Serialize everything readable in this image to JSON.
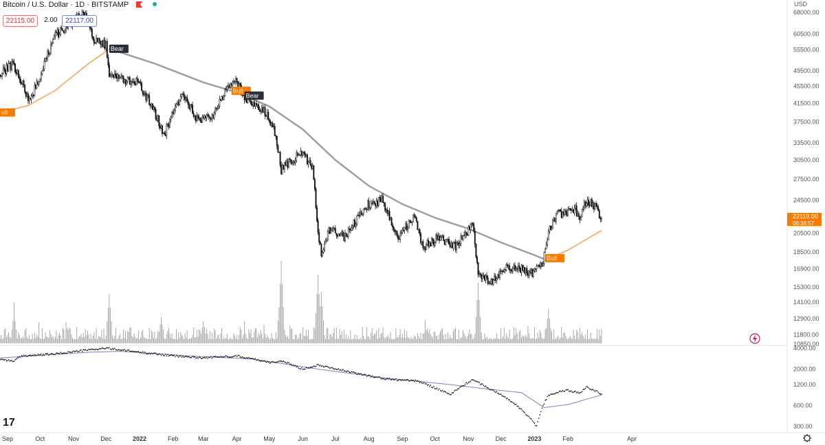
{
  "header": {
    "symbol": "Bitcoin / U.S. Dollar · 1D · BITSTAMP",
    "bid": "22115.00",
    "spread": "2.00",
    "ask": "22117.00"
  },
  "currency": "USD",
  "last_price": "22119.00",
  "countdown": "06:38:57",
  "logo_text": "17",
  "colors": {
    "price": "#111111",
    "ma_slow": "#9e9e9e",
    "ma_fast": "#f2b57a",
    "volume": "#a8a8a8",
    "osc": "#111111",
    "osc_ma": "#7b7fc4",
    "signal": "#f57c00",
    "bear_label": "#2a2e39",
    "bid_border": "#e57373",
    "ask_border": "#7986cb"
  },
  "chart_data": [
    {
      "type": "candlestick",
      "title": "Bitcoin / U.S. Dollar · 1D · BITSTAMP",
      "x_labels": [
        "Sep",
        "Oct",
        "Nov",
        "Dec",
        "2022",
        "Feb",
        "Mar",
        "Apr",
        "May",
        "Jun",
        "Jul",
        "Aug",
        "Sep",
        "Oct",
        "Nov",
        "Dec",
        "2023",
        "Feb",
        "Apr"
      ],
      "y_scale": "log",
      "y_ticks": [
        68000,
        60500,
        55500,
        49500,
        45500,
        41500,
        37500,
        33500,
        30500,
        27500,
        24500,
        20500,
        18500,
        16900,
        15300,
        14100,
        12900,
        11800,
        10850
      ],
      "price_series": {
        "name": "BTCUSD",
        "points": [
          [
            "2021-08-25",
            48500
          ],
          [
            "2021-09-06",
            51500
          ],
          [
            "2021-09-21",
            42000
          ],
          [
            "2021-10-01",
            47500
          ],
          [
            "2021-10-15",
            60000
          ],
          [
            "2021-10-25",
            62500
          ],
          [
            "2021-11-10",
            68000
          ],
          [
            "2021-11-20",
            58500
          ],
          [
            "2021-12-01",
            57000
          ],
          [
            "2021-12-04",
            49000
          ],
          [
            "2021-12-20",
            47000
          ],
          [
            "2021-12-31",
            46300
          ],
          [
            "2022-01-10",
            41800
          ],
          [
            "2022-01-24",
            35000
          ],
          [
            "2022-02-10",
            44000
          ],
          [
            "2022-02-24",
            37500
          ],
          [
            "2022-03-10",
            39000
          ],
          [
            "2022-03-29",
            47400
          ],
          [
            "2022-04-10",
            42300
          ],
          [
            "2022-04-25",
            40000
          ],
          [
            "2022-05-05",
            36500
          ],
          [
            "2022-05-12",
            29000
          ],
          [
            "2022-05-31",
            31800
          ],
          [
            "2022-06-10",
            29000
          ],
          [
            "2022-06-14",
            22000
          ],
          [
            "2022-06-18",
            18000
          ],
          [
            "2022-06-25",
            21000
          ],
          [
            "2022-07-10",
            20000
          ],
          [
            "2022-07-30",
            23800
          ],
          [
            "2022-08-13",
            24500
          ],
          [
            "2022-08-27",
            20000
          ],
          [
            "2022-09-12",
            22300
          ],
          [
            "2022-09-20",
            19000
          ],
          [
            "2022-10-05",
            20000
          ],
          [
            "2022-10-20",
            19100
          ],
          [
            "2022-11-05",
            21300
          ],
          [
            "2022-11-10",
            16500
          ],
          [
            "2022-11-21",
            15700
          ],
          [
            "2022-12-05",
            17100
          ],
          [
            "2022-12-20",
            16800
          ],
          [
            "2022-12-31",
            16550
          ],
          [
            "2023-01-08",
            17100
          ],
          [
            "2023-01-14",
            20800
          ],
          [
            "2023-01-22",
            22800
          ],
          [
            "2023-02-08",
            23200
          ],
          [
            "2023-02-12",
            21800
          ],
          [
            "2023-02-18",
            24700
          ],
          [
            "2023-02-27",
            23400
          ],
          [
            "2023-03-04",
            22119
          ]
        ]
      },
      "ma_slow": {
        "points": [
          [
            "2021-12-04",
            55800
          ],
          [
            "2022-01-15",
            51500
          ],
          [
            "2022-03-01",
            46500
          ],
          [
            "2022-04-01",
            44000
          ],
          [
            "2022-05-01",
            40800
          ],
          [
            "2022-06-01",
            36000
          ],
          [
            "2022-07-01",
            30500
          ],
          [
            "2022-08-01",
            26500
          ],
          [
            "2022-09-01",
            24000
          ],
          [
            "2022-10-01",
            22300
          ],
          [
            "2022-11-01",
            21000
          ],
          [
            "2022-12-01",
            19500
          ],
          [
            "2023-01-01",
            18200
          ],
          [
            "2023-01-10",
            17800
          ]
        ]
      },
      "ma_fast": {
        "points": [
          [
            "2021-08-25",
            39500
          ],
          [
            "2021-09-20",
            41000
          ],
          [
            "2021-10-15",
            44500
          ],
          [
            "2021-11-15",
            51500
          ],
          [
            "2021-12-03",
            55500
          ],
          [
            "2023-01-10",
            17700
          ],
          [
            "2023-02-01",
            18700
          ],
          [
            "2023-03-04",
            20800
          ]
        ]
      },
      "signals": [
        {
          "type": "bull",
          "date": "2021-08-25",
          "text": "ull"
        },
        {
          "type": "bear",
          "date": "2021-12-04",
          "text": "Bear"
        },
        {
          "type": "bull",
          "date": "2022-03-27",
          "text": "Bull"
        },
        {
          "type": "bear",
          "date": "2022-04-08",
          "text": "Bear"
        },
        {
          "type": "bull",
          "date": "2023-01-11",
          "text": "Bull"
        }
      ]
    },
    {
      "type": "line",
      "title": "",
      "y_scale": "log",
      "y_ticks": [
        4000,
        2000,
        1200,
        600,
        300
      ],
      "series": [
        {
          "points": [
            [
              "2021-08-25",
              2800
            ],
            [
              "2021-09-06",
              2600
            ],
            [
              "2021-09-15",
              3100
            ],
            [
              "2021-10-15",
              3300
            ],
            [
              "2021-11-10",
              3700
            ],
            [
              "2021-12-01",
              4000
            ],
            [
              "2022-01-01",
              3500
            ],
            [
              "2022-02-01",
              3100
            ],
            [
              "2022-03-01",
              2900
            ],
            [
              "2022-04-01",
              3100
            ],
            [
              "2022-05-01",
              2500
            ],
            [
              "2022-05-12",
              2600
            ],
            [
              "2022-06-01",
              2000
            ],
            [
              "2022-06-15",
              2300
            ],
            [
              "2022-07-15",
              1800
            ],
            [
              "2022-08-15",
              1450
            ],
            [
              "2022-09-15",
              1350
            ],
            [
              "2022-10-15",
              850
            ],
            [
              "2022-11-05",
              1400
            ],
            [
              "2022-11-20",
              1050
            ],
            [
              "2022-12-20",
              520
            ],
            [
              "2023-01-03",
              300
            ],
            [
              "2023-01-14",
              850
            ],
            [
              "2023-01-31",
              1000
            ],
            [
              "2023-02-12",
              900
            ],
            [
              "2023-02-18",
              1120
            ],
            [
              "2023-03-04",
              880
            ]
          ]
        },
        {
          "points": [
            [
              "2021-08-25",
              2900
            ],
            [
              "2021-11-15",
              3500
            ],
            [
              "2021-12-15",
              3600
            ],
            [
              "2022-02-15",
              3100
            ],
            [
              "2022-04-15",
              2800
            ],
            [
              "2022-06-15",
              2000
            ],
            [
              "2022-08-15",
              1500
            ],
            [
              "2022-10-15",
              1200
            ],
            [
              "2022-11-15",
              1050
            ],
            [
              "2022-12-20",
              920
            ],
            [
              "2023-01-10",
              560
            ],
            [
              "2023-02-01",
              620
            ],
            [
              "2023-03-04",
              850
            ]
          ]
        }
      ]
    }
  ]
}
